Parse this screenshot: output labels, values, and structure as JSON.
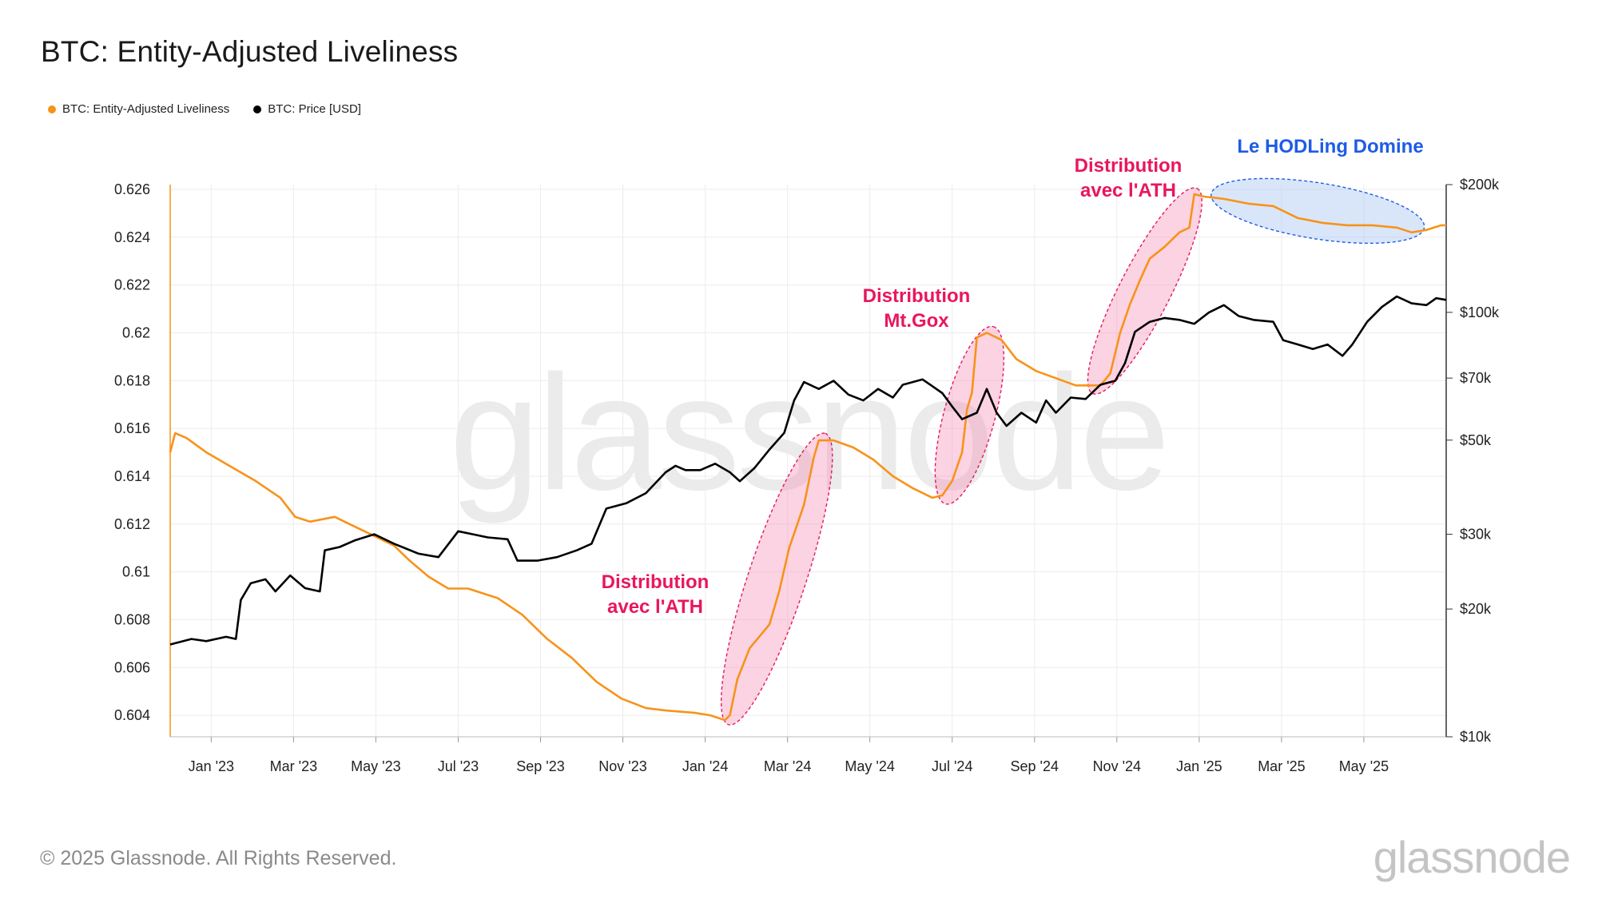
{
  "header": {
    "title": "BTC: Entity-Adjusted Liveliness"
  },
  "footer": {
    "copyright": "© 2025 Glassnode. All Rights Reserved.",
    "logo": "glassnode"
  },
  "colors": {
    "liveliness": "#f7931a",
    "price": "#000000",
    "annotation": "#e8175d",
    "hodl": "#1e5ce6"
  },
  "chart_data": {
    "type": "line",
    "title": "BTC: Entity-Adjusted Liveliness",
    "watermark": "glassnode",
    "legend": [
      "BTC: Entity-Adjusted Liveliness",
      "BTC: Price [USD]"
    ],
    "x_ticks": [
      "Jan '23",
      "Mar '23",
      "May '23",
      "Jul '23",
      "Sep '23",
      "Nov '23",
      "Jan '24",
      "Mar '24",
      "May '24",
      "Jul '24",
      "Sep '24",
      "Nov '24",
      "Jan '25",
      "Mar '25",
      "May '25"
    ],
    "x_range": [
      2022.917,
      2025.5
    ],
    "y_left": {
      "ticks": [
        "0.626",
        "0.624",
        "0.622",
        "0.62",
        "0.618",
        "0.616",
        "0.614",
        "0.612",
        "0.61",
        "0.608",
        "0.606",
        "0.604"
      ],
      "range": [
        0.6031,
        0.6262
      ]
    },
    "y_right": {
      "ticks": [
        {
          "label": "$200k",
          "value": 200000
        },
        {
          "label": "$100k",
          "value": 100000
        },
        {
          "label": "$70k",
          "value": 70000
        },
        {
          "label": "$50k",
          "value": 50000
        },
        {
          "label": "$30k",
          "value": 30000
        },
        {
          "label": "$20k",
          "value": 20000
        },
        {
          "label": "$10k",
          "value": 10000
        }
      ],
      "scale": "log",
      "range": [
        10000,
        200000
      ]
    },
    "series": [
      {
        "name": "BTC: Entity-Adjusted Liveliness",
        "axis": "left",
        "points": [
          [
            2022.917,
            0.615
          ],
          [
            2022.927,
            0.6158
          ],
          [
            2022.95,
            0.6156
          ],
          [
            2022.99,
            0.615
          ],
          [
            2023.04,
            0.6144
          ],
          [
            2023.09,
            0.6138
          ],
          [
            2023.14,
            0.6131
          ],
          [
            2023.17,
            0.6123
          ],
          [
            2023.2,
            0.6121
          ],
          [
            2023.25,
            0.6123
          ],
          [
            2023.28,
            0.612
          ],
          [
            2023.32,
            0.6116
          ],
          [
            2023.37,
            0.6111
          ],
          [
            2023.4,
            0.6105
          ],
          [
            2023.44,
            0.6098
          ],
          [
            2023.48,
            0.6093
          ],
          [
            2023.52,
            0.6093
          ],
          [
            2023.58,
            0.6089
          ],
          [
            2023.63,
            0.6082
          ],
          [
            2023.68,
            0.6072
          ],
          [
            2023.73,
            0.6064
          ],
          [
            2023.78,
            0.6054
          ],
          [
            2023.83,
            0.6047
          ],
          [
            2023.88,
            0.6043
          ],
          [
            2023.92,
            0.6042
          ],
          [
            2023.98,
            0.6041
          ],
          [
            2024.01,
            0.604
          ],
          [
            2024.04,
            0.6038
          ],
          [
            2024.05,
            0.604
          ],
          [
            2024.065,
            0.6055
          ],
          [
            2024.09,
            0.6068
          ],
          [
            2024.13,
            0.6078
          ],
          [
            2024.15,
            0.6092
          ],
          [
            2024.17,
            0.611
          ],
          [
            2024.2,
            0.6128
          ],
          [
            2024.22,
            0.6148
          ],
          [
            2024.23,
            0.6155
          ],
          [
            2024.26,
            0.6155
          ],
          [
            2024.3,
            0.6152
          ],
          [
            2024.34,
            0.6147
          ],
          [
            2024.38,
            0.614
          ],
          [
            2024.42,
            0.6135
          ],
          [
            2024.46,
            0.6131
          ],
          [
            2024.48,
            0.6132
          ],
          [
            2024.5,
            0.6138
          ],
          [
            2024.52,
            0.615
          ],
          [
            2024.53,
            0.6168
          ],
          [
            2024.54,
            0.6175
          ],
          [
            2024.55,
            0.6198
          ],
          [
            2024.57,
            0.62
          ],
          [
            2024.6,
            0.6197
          ],
          [
            2024.63,
            0.6189
          ],
          [
            2024.67,
            0.6184
          ],
          [
            2024.71,
            0.6181
          ],
          [
            2024.75,
            0.6178
          ],
          [
            2024.79,
            0.6178
          ],
          [
            2024.8,
            0.6178
          ],
          [
            2024.82,
            0.6183
          ],
          [
            2024.84,
            0.62
          ],
          [
            2024.86,
            0.6212
          ],
          [
            2024.88,
            0.6222
          ],
          [
            2024.9,
            0.6231
          ],
          [
            2024.93,
            0.6236
          ],
          [
            2024.96,
            0.6242
          ],
          [
            2024.98,
            0.6244
          ],
          [
            2024.99,
            0.6258
          ],
          [
            2025.01,
            0.6257
          ],
          [
            2025.05,
            0.6256
          ],
          [
            2025.1,
            0.6254
          ],
          [
            2025.15,
            0.6253
          ],
          [
            2025.2,
            0.6248
          ],
          [
            2025.25,
            0.6246
          ],
          [
            2025.3,
            0.6245
          ],
          [
            2025.35,
            0.6245
          ],
          [
            2025.4,
            0.6244
          ],
          [
            2025.43,
            0.6242
          ],
          [
            2025.46,
            0.6243
          ],
          [
            2025.49,
            0.6245
          ],
          [
            2025.5,
            0.6245
          ]
        ]
      },
      {
        "name": "BTC: Price [USD]",
        "axis": "right",
        "points": [
          [
            2022.917,
            16500
          ],
          [
            2022.96,
            17000
          ],
          [
            2022.99,
            16800
          ],
          [
            2023.03,
            17200
          ],
          [
            2023.05,
            17000
          ],
          [
            2023.06,
            21000
          ],
          [
            2023.08,
            23000
          ],
          [
            2023.11,
            23500
          ],
          [
            2023.13,
            22000
          ],
          [
            2023.16,
            24000
          ],
          [
            2023.19,
            22400
          ],
          [
            2023.22,
            22000
          ],
          [
            2023.23,
            27500
          ],
          [
            2023.26,
            28000
          ],
          [
            2023.29,
            29000
          ],
          [
            2023.33,
            30000
          ],
          [
            2023.37,
            28500
          ],
          [
            2023.42,
            27000
          ],
          [
            2023.46,
            26500
          ],
          [
            2023.5,
            30500
          ],
          [
            2023.53,
            30000
          ],
          [
            2023.56,
            29500
          ],
          [
            2023.6,
            29200
          ],
          [
            2023.62,
            26000
          ],
          [
            2023.66,
            26000
          ],
          [
            2023.7,
            26500
          ],
          [
            2023.74,
            27500
          ],
          [
            2023.77,
            28500
          ],
          [
            2023.8,
            34500
          ],
          [
            2023.84,
            35500
          ],
          [
            2023.88,
            37500
          ],
          [
            2023.92,
            42000
          ],
          [
            2023.94,
            43500
          ],
          [
            2023.96,
            42500
          ],
          [
            2023.99,
            42500
          ],
          [
            2024.02,
            44000
          ],
          [
            2024.05,
            42000
          ],
          [
            2024.07,
            40000
          ],
          [
            2024.1,
            43000
          ],
          [
            2024.13,
            47500
          ],
          [
            2024.16,
            52000
          ],
          [
            2024.18,
            62000
          ],
          [
            2024.2,
            68500
          ],
          [
            2024.23,
            66000
          ],
          [
            2024.26,
            69000
          ],
          [
            2024.29,
            64000
          ],
          [
            2024.32,
            62000
          ],
          [
            2024.35,
            66000
          ],
          [
            2024.38,
            63000
          ],
          [
            2024.4,
            67500
          ],
          [
            2024.44,
            69500
          ],
          [
            2024.46,
            67000
          ],
          [
            2024.48,
            64500
          ],
          [
            2024.5,
            60000
          ],
          [
            2024.52,
            56000
          ],
          [
            2024.55,
            58000
          ],
          [
            2024.57,
            66000
          ],
          [
            2024.59,
            58000
          ],
          [
            2024.61,
            54000
          ],
          [
            2024.64,
            58000
          ],
          [
            2024.67,
            55000
          ],
          [
            2024.69,
            62000
          ],
          [
            2024.71,
            58000
          ],
          [
            2024.74,
            63000
          ],
          [
            2024.77,
            62500
          ],
          [
            2024.8,
            67500
          ],
          [
            2024.83,
            69000
          ],
          [
            2024.85,
            76000
          ],
          [
            2024.87,
            90000
          ],
          [
            2024.9,
            95000
          ],
          [
            2024.93,
            97000
          ],
          [
            2024.96,
            96000
          ],
          [
            2024.99,
            94000
          ],
          [
            2025.02,
            100000
          ],
          [
            2025.05,
            104000
          ],
          [
            2025.08,
            98000
          ],
          [
            2025.11,
            96000
          ],
          [
            2025.15,
            95000
          ],
          [
            2025.17,
            86000
          ],
          [
            2025.2,
            84000
          ],
          [
            2025.23,
            82000
          ],
          [
            2025.26,
            84000
          ],
          [
            2025.29,
            79000
          ],
          [
            2025.31,
            84000
          ],
          [
            2025.34,
            95000
          ],
          [
            2025.37,
            103000
          ],
          [
            2025.4,
            109000
          ],
          [
            2025.43,
            105000
          ],
          [
            2025.46,
            104000
          ],
          [
            2025.48,
            108000
          ],
          [
            2025.5,
            107000
          ]
        ]
      }
    ],
    "annotations": [
      {
        "text": [
          "Distribution",
          "avec l'ATH"
        ],
        "x": 2024.15,
        "y": 0.6098,
        "shape": "pink-ellipse"
      },
      {
        "text": [
          "Distribution",
          "Mt.Gox"
        ],
        "x": 2024.54,
        "y": 0.6165,
        "shape": "pink-ellipse"
      },
      {
        "text": [
          "Distribution",
          "avec l'ATH"
        ],
        "x": 2024.9,
        "y": 0.6218,
        "shape": "pink-ellipse"
      },
      {
        "text": [
          "Le HODLing Domine"
        ],
        "x": 2025.25,
        "y": 0.6252,
        "shape": "blue-ellipse"
      }
    ]
  }
}
